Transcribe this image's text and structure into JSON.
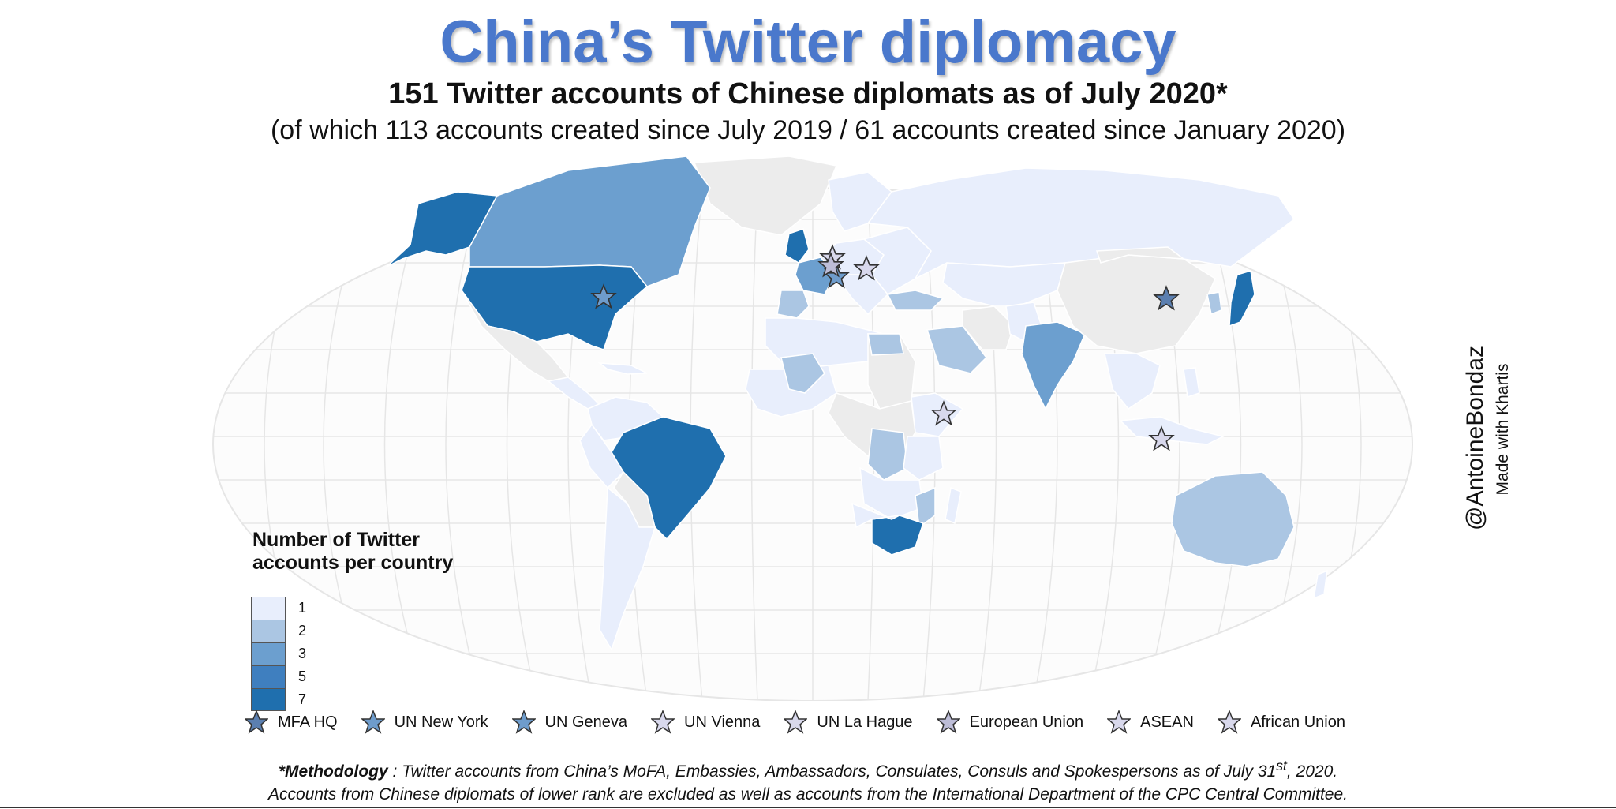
{
  "header": {
    "title": "China’s Twitter diplomacy",
    "subtitle": "151 Twitter accounts of Chinese diplomats as of July 2020*",
    "subtitle2": "(of which 113 accounts created since July 2019 / 61 accounts created since January 2020)"
  },
  "legend": {
    "title_line1": "Number of Twitter",
    "title_line2": "accounts per country",
    "items": [
      {
        "label": "1",
        "color": "#e8eefc"
      },
      {
        "label": "2",
        "color": "#abc6e3"
      },
      {
        "label": "3",
        "color": "#6c9fcf"
      },
      {
        "label": "5",
        "color": "#3f7fbf"
      },
      {
        "label": "7",
        "color": "#1f6fae"
      }
    ]
  },
  "star_legend": [
    {
      "label": "MFA HQ",
      "color": "#5b7fb0"
    },
    {
      "label": "UN New York",
      "color": "#6e9ccc"
    },
    {
      "label": "UN Geneva",
      "color": "#6e9ccc"
    },
    {
      "label": "UN Vienna",
      "color": "#d8d8ec"
    },
    {
      "label": "UN La Hague",
      "color": "#d8d8ec"
    },
    {
      "label": "European Union",
      "color": "#bdbdd8"
    },
    {
      "label": "ASEAN",
      "color": "#d8d8ec"
    },
    {
      "label": "African Union",
      "color": "#d8d8ec"
    }
  ],
  "credit": {
    "handle": "@AntoineBondaz",
    "made_with": "Made with Khartis"
  },
  "methodology": {
    "label": "*Methodology",
    "line1": " : Twitter accounts from China’s MoFA, Embassies, Ambassadors, Consulates, Consuls and Spokespersons as of July 31",
    "line1_sup": "st",
    "line1_end": ", 2020.",
    "line2": "Accounts from Chinese diplomats of lower rank are excluded as well as accounts from the International Department of the CPC Central Committee."
  },
  "colors": {
    "no_data": "#ececec",
    "grid": "#e4e4e4",
    "title": "#4a78cc"
  }
}
